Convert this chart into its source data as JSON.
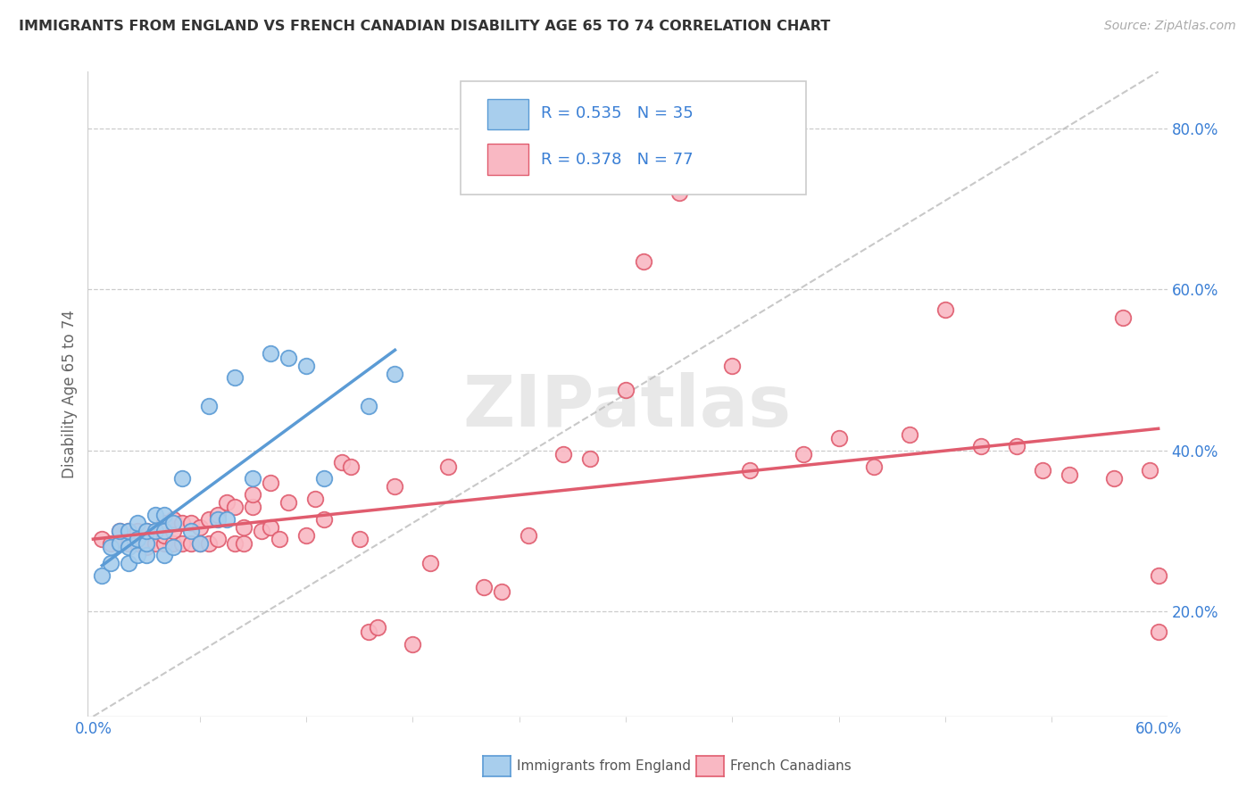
{
  "title": "IMMIGRANTS FROM ENGLAND VS FRENCH CANADIAN DISABILITY AGE 65 TO 74 CORRELATION CHART",
  "source": "Source: ZipAtlas.com",
  "ylabel": "Disability Age 65 to 74",
  "ytick_vals": [
    0.2,
    0.4,
    0.6,
    0.8
  ],
  "xmin": 0.0,
  "xmax": 0.6,
  "ymin": 0.07,
  "ymax": 0.87,
  "color_england": "#A8CEED",
  "color_french": "#F9B8C3",
  "color_england_line": "#5B9BD5",
  "color_french_line": "#E05C6E",
  "color_dashed": "#BBBBBB",
  "watermark": "ZIPatlas",
  "england_x": [
    0.005,
    0.01,
    0.01,
    0.015,
    0.015,
    0.02,
    0.02,
    0.02,
    0.025,
    0.025,
    0.025,
    0.03,
    0.03,
    0.03,
    0.035,
    0.035,
    0.04,
    0.04,
    0.04,
    0.045,
    0.045,
    0.05,
    0.055,
    0.06,
    0.065,
    0.07,
    0.075,
    0.08,
    0.09,
    0.1,
    0.11,
    0.12,
    0.13,
    0.155,
    0.17
  ],
  "england_y": [
    0.245,
    0.26,
    0.28,
    0.285,
    0.3,
    0.26,
    0.28,
    0.3,
    0.27,
    0.29,
    0.31,
    0.27,
    0.285,
    0.3,
    0.3,
    0.32,
    0.27,
    0.3,
    0.32,
    0.28,
    0.31,
    0.365,
    0.3,
    0.285,
    0.455,
    0.315,
    0.315,
    0.49,
    0.365,
    0.52,
    0.515,
    0.505,
    0.365,
    0.455,
    0.495
  ],
  "french_x": [
    0.005,
    0.01,
    0.015,
    0.015,
    0.02,
    0.02,
    0.025,
    0.025,
    0.03,
    0.03,
    0.03,
    0.035,
    0.035,
    0.04,
    0.04,
    0.04,
    0.045,
    0.045,
    0.045,
    0.05,
    0.05,
    0.055,
    0.055,
    0.06,
    0.06,
    0.065,
    0.065,
    0.07,
    0.07,
    0.075,
    0.08,
    0.08,
    0.085,
    0.085,
    0.09,
    0.09,
    0.095,
    0.1,
    0.1,
    0.105,
    0.11,
    0.12,
    0.125,
    0.13,
    0.14,
    0.145,
    0.15,
    0.155,
    0.16,
    0.17,
    0.18,
    0.19,
    0.2,
    0.22,
    0.23,
    0.245,
    0.265,
    0.28,
    0.3,
    0.31,
    0.33,
    0.36,
    0.37,
    0.4,
    0.42,
    0.44,
    0.46,
    0.48,
    0.5,
    0.52,
    0.535,
    0.55,
    0.575,
    0.58,
    0.595,
    0.6,
    0.6
  ],
  "french_y": [
    0.29,
    0.285,
    0.285,
    0.3,
    0.285,
    0.3,
    0.285,
    0.3,
    0.28,
    0.3,
    0.285,
    0.285,
    0.3,
    0.285,
    0.295,
    0.31,
    0.285,
    0.3,
    0.315,
    0.285,
    0.31,
    0.285,
    0.31,
    0.285,
    0.305,
    0.285,
    0.315,
    0.29,
    0.32,
    0.335,
    0.285,
    0.33,
    0.285,
    0.305,
    0.33,
    0.345,
    0.3,
    0.305,
    0.36,
    0.29,
    0.335,
    0.295,
    0.34,
    0.315,
    0.385,
    0.38,
    0.29,
    0.175,
    0.18,
    0.355,
    0.16,
    0.26,
    0.38,
    0.23,
    0.225,
    0.295,
    0.395,
    0.39,
    0.475,
    0.635,
    0.72,
    0.505,
    0.375,
    0.395,
    0.415,
    0.38,
    0.42,
    0.575,
    0.405,
    0.405,
    0.375,
    0.37,
    0.365,
    0.565,
    0.375,
    0.245,
    0.175
  ]
}
